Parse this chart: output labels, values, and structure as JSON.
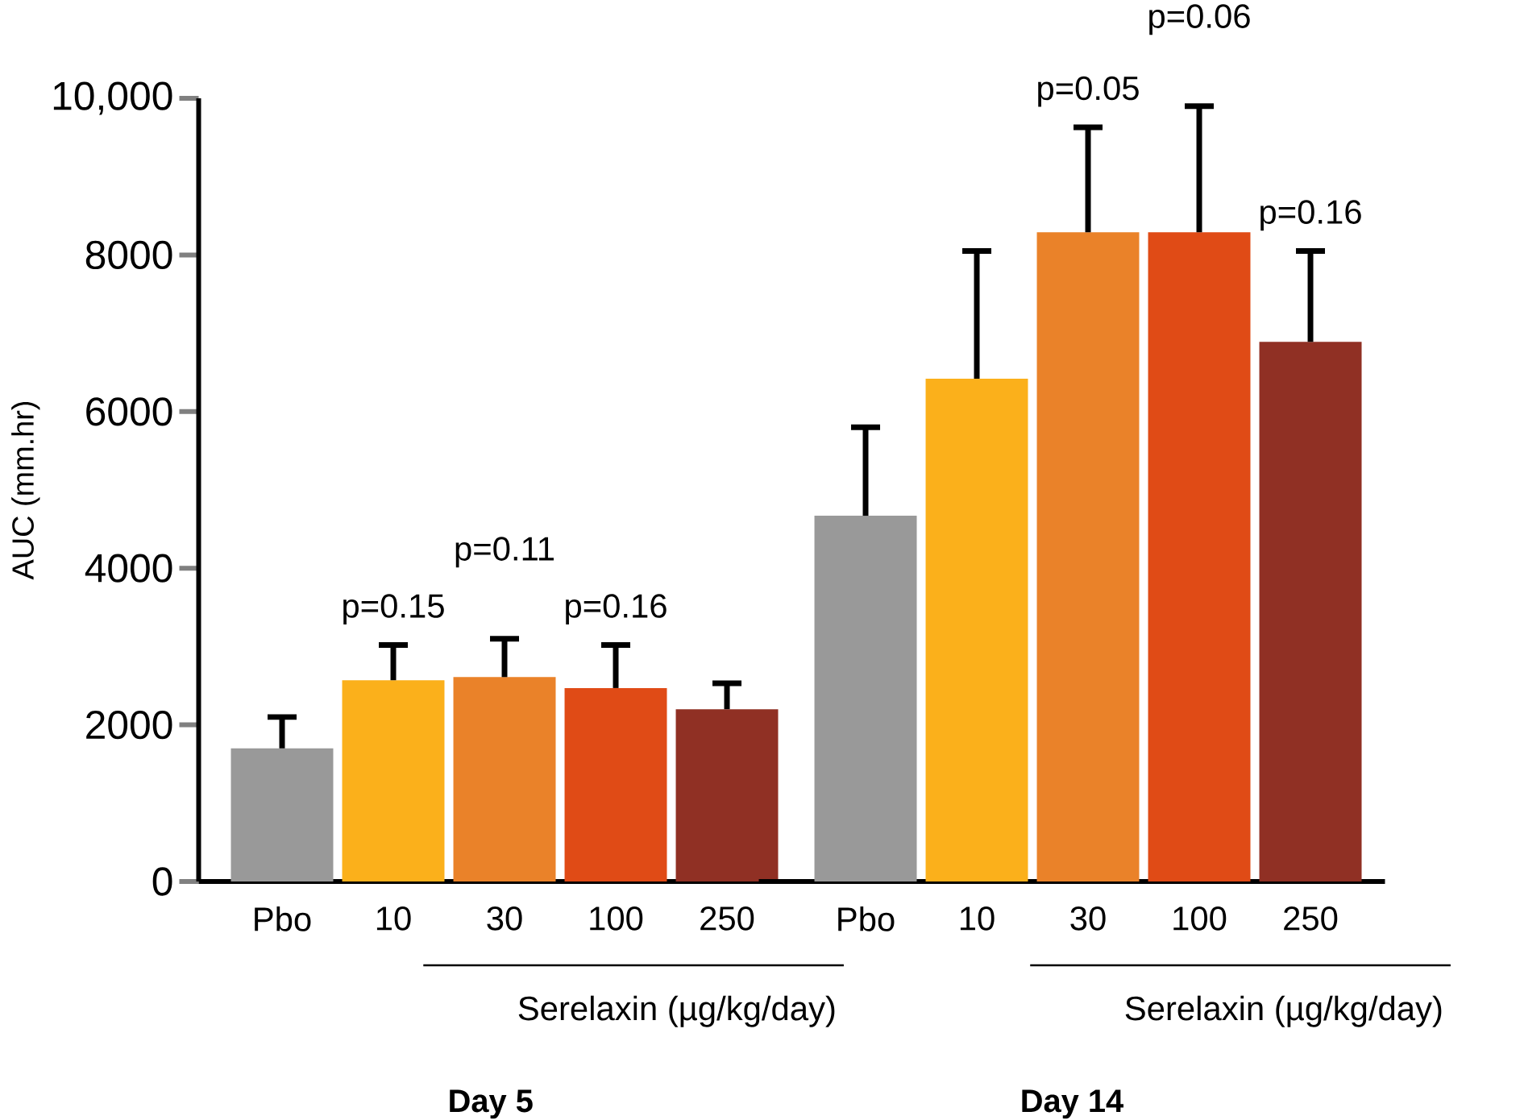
{
  "chart_data": [
    {
      "type": "bar",
      "ylabel": "AUC (mm.hr)",
      "xlabel": "Day 5",
      "grid": false,
      "categories": [
        "Pbo",
        "10",
        "30",
        "100",
        "250"
      ],
      "values": [
        1700,
        2570,
        2610,
        2470,
        2200
      ],
      "colors": [
        "#999999",
        "#fbb01b",
        "#ea8229",
        "#e04b16",
        "#903024"
      ],
      "errors": [
        [
          1700,
          2100
        ],
        [
          2570,
          3020
        ],
        [
          2610,
          3100
        ],
        [
          2470,
          3020
        ],
        [
          2200,
          2530
        ]
      ],
      "ylim": [
        0,
        10000
      ],
      "yticks": [
        0,
        2000,
        4000,
        6000,
        8000,
        {
          "value": 10000,
          "label": "10,000"
        }
      ],
      "annotations": [
        "p=0.15",
        "p=0.11",
        "p=0.16",
        "Serelaxin (µg/kg/day)"
      ]
    },
    {
      "type": "bar",
      "xlabel": "Day 14",
      "tick_labels": "x",
      "grid": false,
      "categories": [
        "Pbo",
        "10",
        "30",
        "100",
        "250"
      ],
      "values": [
        4670,
        6420,
        8290,
        8290,
        6890
      ],
      "colors": [
        "#999999",
        "#fbb01b",
        "#ea8229",
        "#e04b16",
        "#903024"
      ],
      "errors": [
        [
          4670,
          5800
        ],
        [
          6420,
          8050
        ],
        [
          8290,
          9630
        ],
        [
          8290,
          9900
        ],
        [
          6890,
          8050
        ]
      ],
      "ylim": [
        0,
        10000
      ],
      "annotations": [
        "p=0.05",
        "p=0.06",
        "p=0.16",
        "Serelaxin (µg/kg/day)"
      ]
    }
  ]
}
